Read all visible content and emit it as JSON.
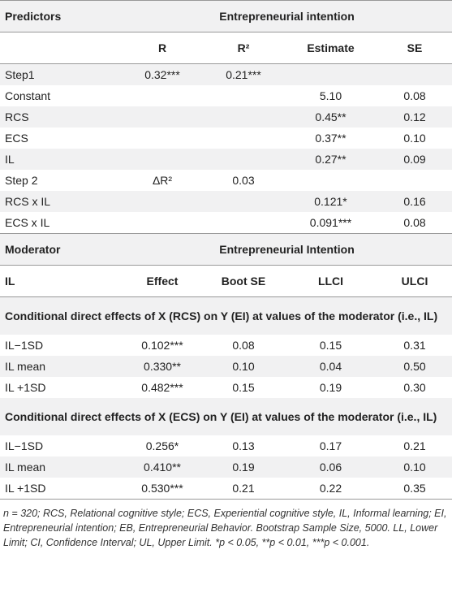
{
  "table1": {
    "header": [
      "Predictors",
      "Entrepreneurial intention"
    ],
    "columns": [
      "R",
      "R²",
      "Estimate",
      "SE"
    ],
    "rows": [
      [
        "Step1",
        "0.32***",
        "0.21***",
        null,
        null
      ],
      [
        "Constant",
        null,
        null,
        "5.10",
        "0.08"
      ],
      [
        "RCS",
        null,
        null,
        "0.45**",
        "0.12"
      ],
      [
        "ECS",
        null,
        null,
        "0.37**",
        "0.10"
      ],
      [
        "IL",
        null,
        null,
        "0.27**",
        "0.09"
      ],
      [
        "Step 2",
        "ΔR²",
        "0.03",
        null,
        null
      ],
      [
        "RCS x IL",
        null,
        null,
        "0.121*",
        "0.16"
      ],
      [
        "ECS x IL",
        null,
        null,
        "0.091***",
        "0.08"
      ]
    ]
  },
  "table2": {
    "header": [
      "Moderator",
      "Entrepreneurial Intention"
    ],
    "columns": [
      "IL",
      "Effect",
      "Boot SE",
      "LLCI",
      "ULCI"
    ],
    "groups": [
      {
        "title": "Conditional direct effects of X (RCS) on Y (EI) at values of the moderator (i.e., IL)",
        "rows": [
          [
            "IL−1SD",
            "0.102***",
            "0.08",
            "0.15",
            "0.31"
          ],
          [
            "IL mean",
            "0.330**",
            "0.10",
            "0.04",
            "0.50"
          ],
          [
            "IL +1SD",
            "0.482***",
            "0.15",
            "0.19",
            "0.30"
          ]
        ]
      },
      {
        "title": "Conditional direct effects of X (ECS) on Y (EI) at values of the moderator (i.e., IL)",
        "rows": [
          [
            "IL−1SD",
            "0.256*",
            "0.13",
            "0.17",
            "0.21"
          ],
          [
            "IL mean",
            "0.410**",
            "0.19",
            "0.06",
            "0.10"
          ],
          [
            "IL +1SD",
            "0.530***",
            "0.21",
            "0.22",
            "0.35"
          ]
        ]
      }
    ]
  },
  "footnote": "n = 320; RCS, Relational cognitive style; ECS, Experiential cognitive style, IL, Informal learning; EI, Entrepreneurial intention; EB, Entrepreneurial Behavior. Bootstrap Sample Size, 5000. LL, Lower Limit; CI, Confidence Interval; UL, Upper Limit. *p < 0.05, **p < 0.01, ***p < 0.001."
}
